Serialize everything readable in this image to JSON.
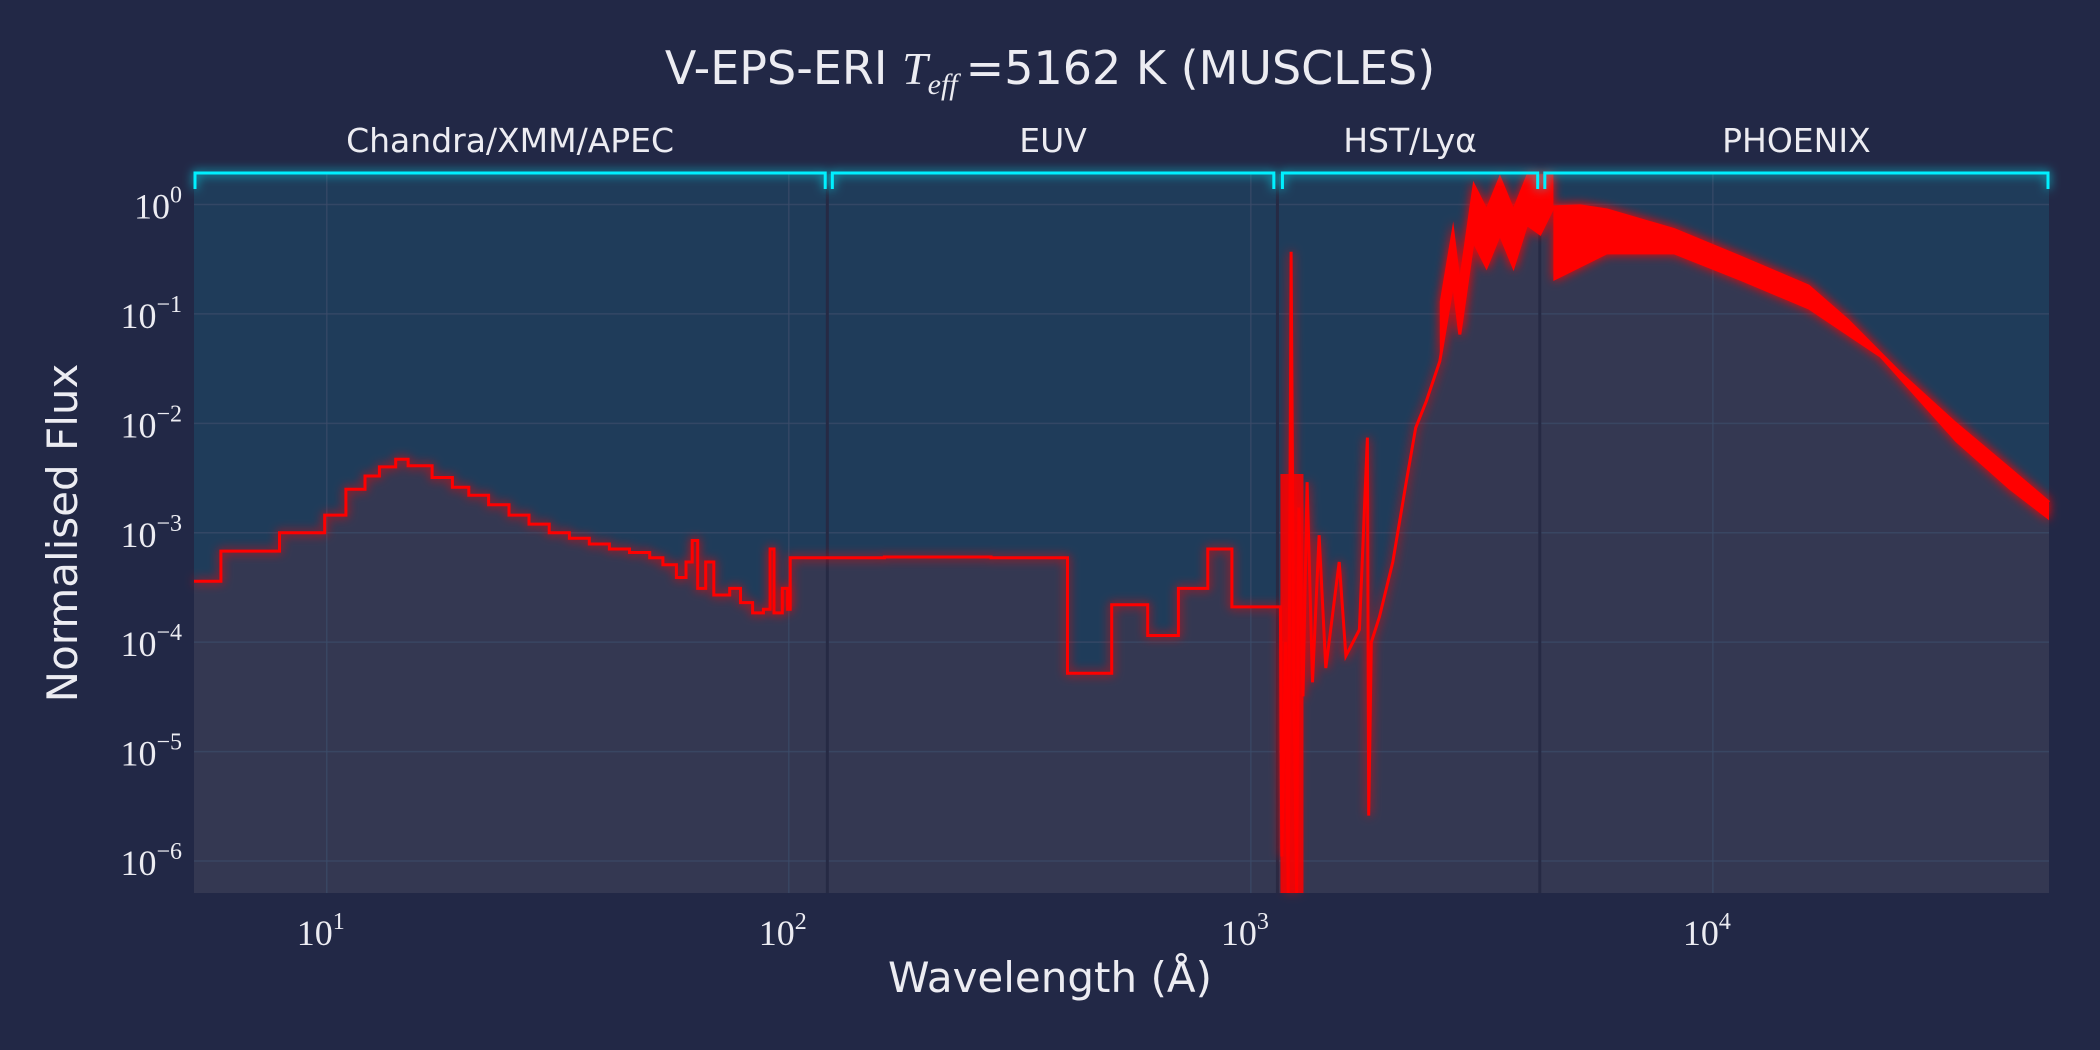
{
  "chart_data": {
    "type": "line",
    "title": {
      "prefix": "V-EPS-ERI",
      "symbol": "T",
      "subscript": "eff",
      "suffix": "=5162 K (MUSCLES)"
    },
    "xlabel": "Wavelength (Å)",
    "ylabel": "Normalised Flux",
    "xscale": "log",
    "yscale": "log",
    "xlim": [
      5.16,
      53400
    ],
    "ylim": [
      5.1e-07,
      1.9
    ],
    "grid": true,
    "xticks": [
      {
        "base": "10",
        "exp": "1",
        "value": 10
      },
      {
        "base": "10",
        "exp": "2",
        "value": 100
      },
      {
        "base": "10",
        "exp": "3",
        "value": 1000
      },
      {
        "base": "10",
        "exp": "4",
        "value": 10000
      }
    ],
    "yticks": [
      {
        "base": "10",
        "exp": "0",
        "value": 1
      },
      {
        "base": "10",
        "exp": "−1",
        "value": 0.1
      },
      {
        "base": "10",
        "exp": "−2",
        "value": 0.01
      },
      {
        "base": "10",
        "exp": "−3",
        "value": 0.001
      },
      {
        "base": "10",
        "exp": "−4",
        "value": 0.0001
      },
      {
        "base": "10",
        "exp": "−5",
        "value": 1e-05
      },
      {
        "base": "10",
        "exp": "−6",
        "value": 1e-06
      }
    ],
    "bands": [
      {
        "label": "Chandra/XMM/APEC",
        "range": [
          5.16,
          120.5
        ]
      },
      {
        "label": "EUV",
        "range": [
          123,
          1127
        ]
      },
      {
        "label": "HST/Lyα",
        "range": [
          1159,
          4198
        ]
      },
      {
        "label": "PHOENIX",
        "range": [
          4285,
          53400
        ]
      }
    ],
    "colors": {
      "spectrum": "#ff0000",
      "bracket": "#00f0ff",
      "above_fill": "#1f3c5a",
      "below_fill": "#343852",
      "background": "#222846"
    },
    "series": [
      {
        "style": "steps-post",
        "points": [
          [
            5.16,
            0.00036
          ],
          [
            5.9,
            0.00068
          ],
          [
            7.9,
            0.001
          ],
          [
            9.9,
            0.00145
          ],
          [
            11,
            0.0025
          ],
          [
            12.1,
            0.0033
          ],
          [
            13.0,
            0.004
          ],
          [
            14.1,
            0.0047
          ],
          [
            15.0,
            0.0041
          ],
          [
            16.9,
            0.0032
          ],
          [
            18.7,
            0.0026
          ],
          [
            20.3,
            0.0022
          ],
          [
            22.4,
            0.0018
          ],
          [
            24.8,
            0.00145
          ],
          [
            27.4,
            0.0012
          ],
          [
            30.3,
            0.001
          ],
          [
            33.5,
            0.00089
          ],
          [
            37.0,
            0.00079
          ],
          [
            40.9,
            0.00071
          ],
          [
            45.2,
            0.00066
          ],
          [
            50,
            0.00059
          ],
          [
            53.4,
            0.00051
          ],
          [
            57.1,
            0.00039
          ],
          [
            59.9,
            0.00054
          ],
          [
            61.8,
            0.00085
          ],
          [
            63.5,
            0.00031
          ],
          [
            66.1,
            0.00054
          ],
          [
            68.8,
            0.00027
          ],
          [
            74.5,
            0.00031
          ],
          [
            78.6,
            0.00023
          ],
          [
            83.5,
            0.000185
          ],
          [
            88.1,
            0.0002
          ],
          [
            91.1,
            0.00071
          ],
          [
            92.9,
            0.000185
          ],
          [
            96.8,
            0.00031
          ],
          [
            99.4,
            0.0002
          ],
          [
            100.7,
            0.00059
          ],
          [
            161,
            0.0006
          ],
          [
            274,
            0.00059
          ],
          [
            401,
            5.2e-05
          ],
          [
            500,
            0.00022
          ],
          [
            598,
            0.000115
          ],
          [
            697,
            0.00031
          ],
          [
            807,
            0.00071
          ],
          [
            910,
            0.00021
          ],
          [
            1159,
            0.00021
          ]
        ]
      },
      {
        "style": "line",
        "points": [
          [
            1159,
            0.00021
          ],
          [
            1167,
            1.1e-06
          ],
          [
            1189,
            0.0001
          ],
          [
            1205,
            5e-07
          ],
          [
            1222,
            0.37
          ],
          [
            1238,
            5.8e-05
          ],
          [
            1256,
            5e-07
          ],
          [
            1271,
            0.0017
          ],
          [
            1297,
            3.2e-05
          ],
          [
            1324,
            0.0029
          ],
          [
            1360,
            4.3e-05
          ],
          [
            1405,
            0.00095
          ],
          [
            1453,
            5.8e-05
          ],
          [
            1553,
            0.00054
          ],
          [
            1606,
            7.5e-05
          ],
          [
            1718,
            0.00013
          ],
          [
            1788,
            0.0074
          ],
          [
            1799,
            2.6e-06
          ],
          [
            1823,
            0.0001
          ],
          [
            1898,
            0.00017
          ],
          [
            2029,
            0.00054
          ],
          [
            2169,
            0.0029
          ],
          [
            2274,
            0.0091
          ],
          [
            2399,
            0.016
          ],
          [
            2564,
            0.037
          ],
          [
            2742,
            0.2
          ],
          [
            2833,
            0.065
          ],
          [
            3029,
            0.47
          ],
          [
            3237,
            0.27
          ],
          [
            3460,
            0.54
          ],
          [
            3700,
            0.27
          ],
          [
            3954,
            0.66
          ],
          [
            4227,
            0.54
          ],
          [
            4518,
            0.95
          ],
          [
            5164,
            0.97
          ],
          [
            5900,
            0.89
          ],
          [
            8240,
            0.59
          ],
          [
            11500,
            0.33
          ],
          [
            16100,
            0.18
          ],
          [
            19600,
            0.087
          ],
          [
            25600,
            0.028
          ],
          [
            33500,
            0.01
          ],
          [
            43700,
            0.0039
          ],
          [
            53400,
            0.0019
          ]
        ]
      },
      {
        "style": "lower-envelope",
        "points": [
          [
            4518,
            0.2
          ],
          [
            5900,
            0.35
          ],
          [
            8240,
            0.35
          ],
          [
            11500,
            0.2
          ],
          [
            16100,
            0.11
          ],
          [
            23000,
            0.04
          ],
          [
            33500,
            0.0068
          ],
          [
            43700,
            0.0025
          ],
          [
            53400,
            0.0013
          ]
        ]
      }
    ]
  }
}
